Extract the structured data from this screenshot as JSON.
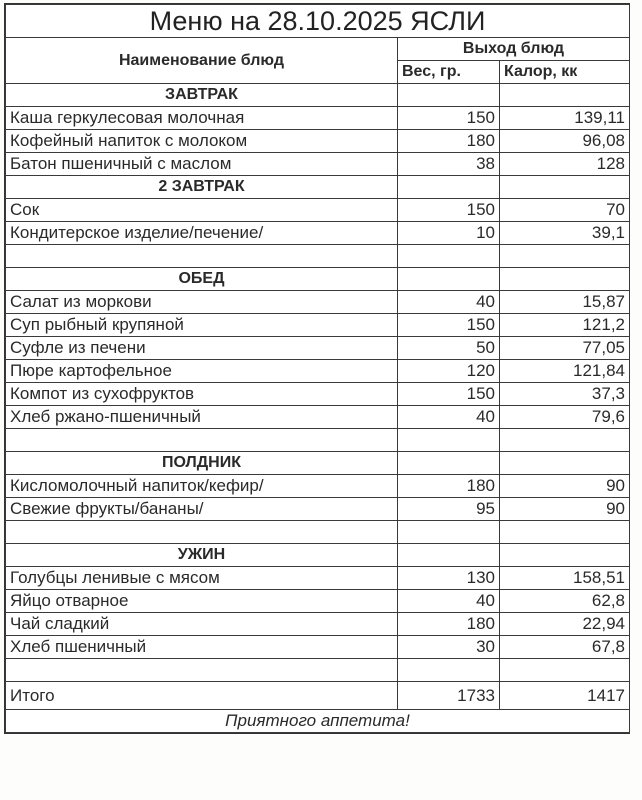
{
  "title": "Меню на 28.10.2025 ЯСЛИ",
  "header": {
    "name_col": "Наименование блюд",
    "output_col": "Выход блюд",
    "weight_col": "Вес, гр.",
    "cal_col": "Калор, кк"
  },
  "rows": [
    {
      "section": "ЗАВТРАК"
    },
    {
      "name": "Каша геркулесовая молочная",
      "weight": "150",
      "cal": "139,11"
    },
    {
      "name": "Кофейный напиток с молоком",
      "weight": "180",
      "cal": "96,08"
    },
    {
      "name": "Батон пшеничный с маслом",
      "weight": "38",
      "cal": "128"
    },
    {
      "section": "2 ЗАВТРАК"
    },
    {
      "name": "Сок",
      "weight": "150",
      "cal": "70"
    },
    {
      "name": "Кондитерское изделие/печение/",
      "weight": "10",
      "cal": "39,1"
    },
    {
      "empty": true
    },
    {
      "section": "ОБЕД"
    },
    {
      "name": "Салат из моркови",
      "weight": "40",
      "cal": "15,87"
    },
    {
      "name": "Суп рыбный крупяной",
      "weight": "150",
      "cal": "121,2"
    },
    {
      "name": "Суфле из печени",
      "weight": "50",
      "cal": "77,05"
    },
    {
      "name": "Пюре картофельное",
      "weight": "120",
      "cal": "121,84"
    },
    {
      "name": "Компот из сухофруктов",
      "weight": "150",
      "cal": "37,3"
    },
    {
      "name": "Хлеб ржано-пшеничный",
      "weight": "40",
      "cal": "79,6"
    },
    {
      "empty": true
    },
    {
      "section": "ПОЛДНИК"
    },
    {
      "name": "Кисломолочный напиток/кефир/",
      "weight": "180",
      "cal": "90"
    },
    {
      "name": "Свежие фрукты/бананы/",
      "weight": "95",
      "cal": "90"
    },
    {
      "empty": true
    },
    {
      "section": "УЖИН"
    },
    {
      "name": "Голубцы ленивые с мясом",
      "weight": "130",
      "cal": "158,51"
    },
    {
      "name": "Яйцо отварное",
      "weight": "40",
      "cal": "62,8"
    },
    {
      "name": "Чай сладкий",
      "weight": "180",
      "cal": "22,94"
    },
    {
      "name": "Хлеб пшеничный",
      "weight": "30",
      "cal": "67,8"
    },
    {
      "empty": true
    }
  ],
  "total": {
    "label": "Итого",
    "weight": "1733",
    "cal": "1417"
  },
  "footer": "Приятного аппетита!"
}
